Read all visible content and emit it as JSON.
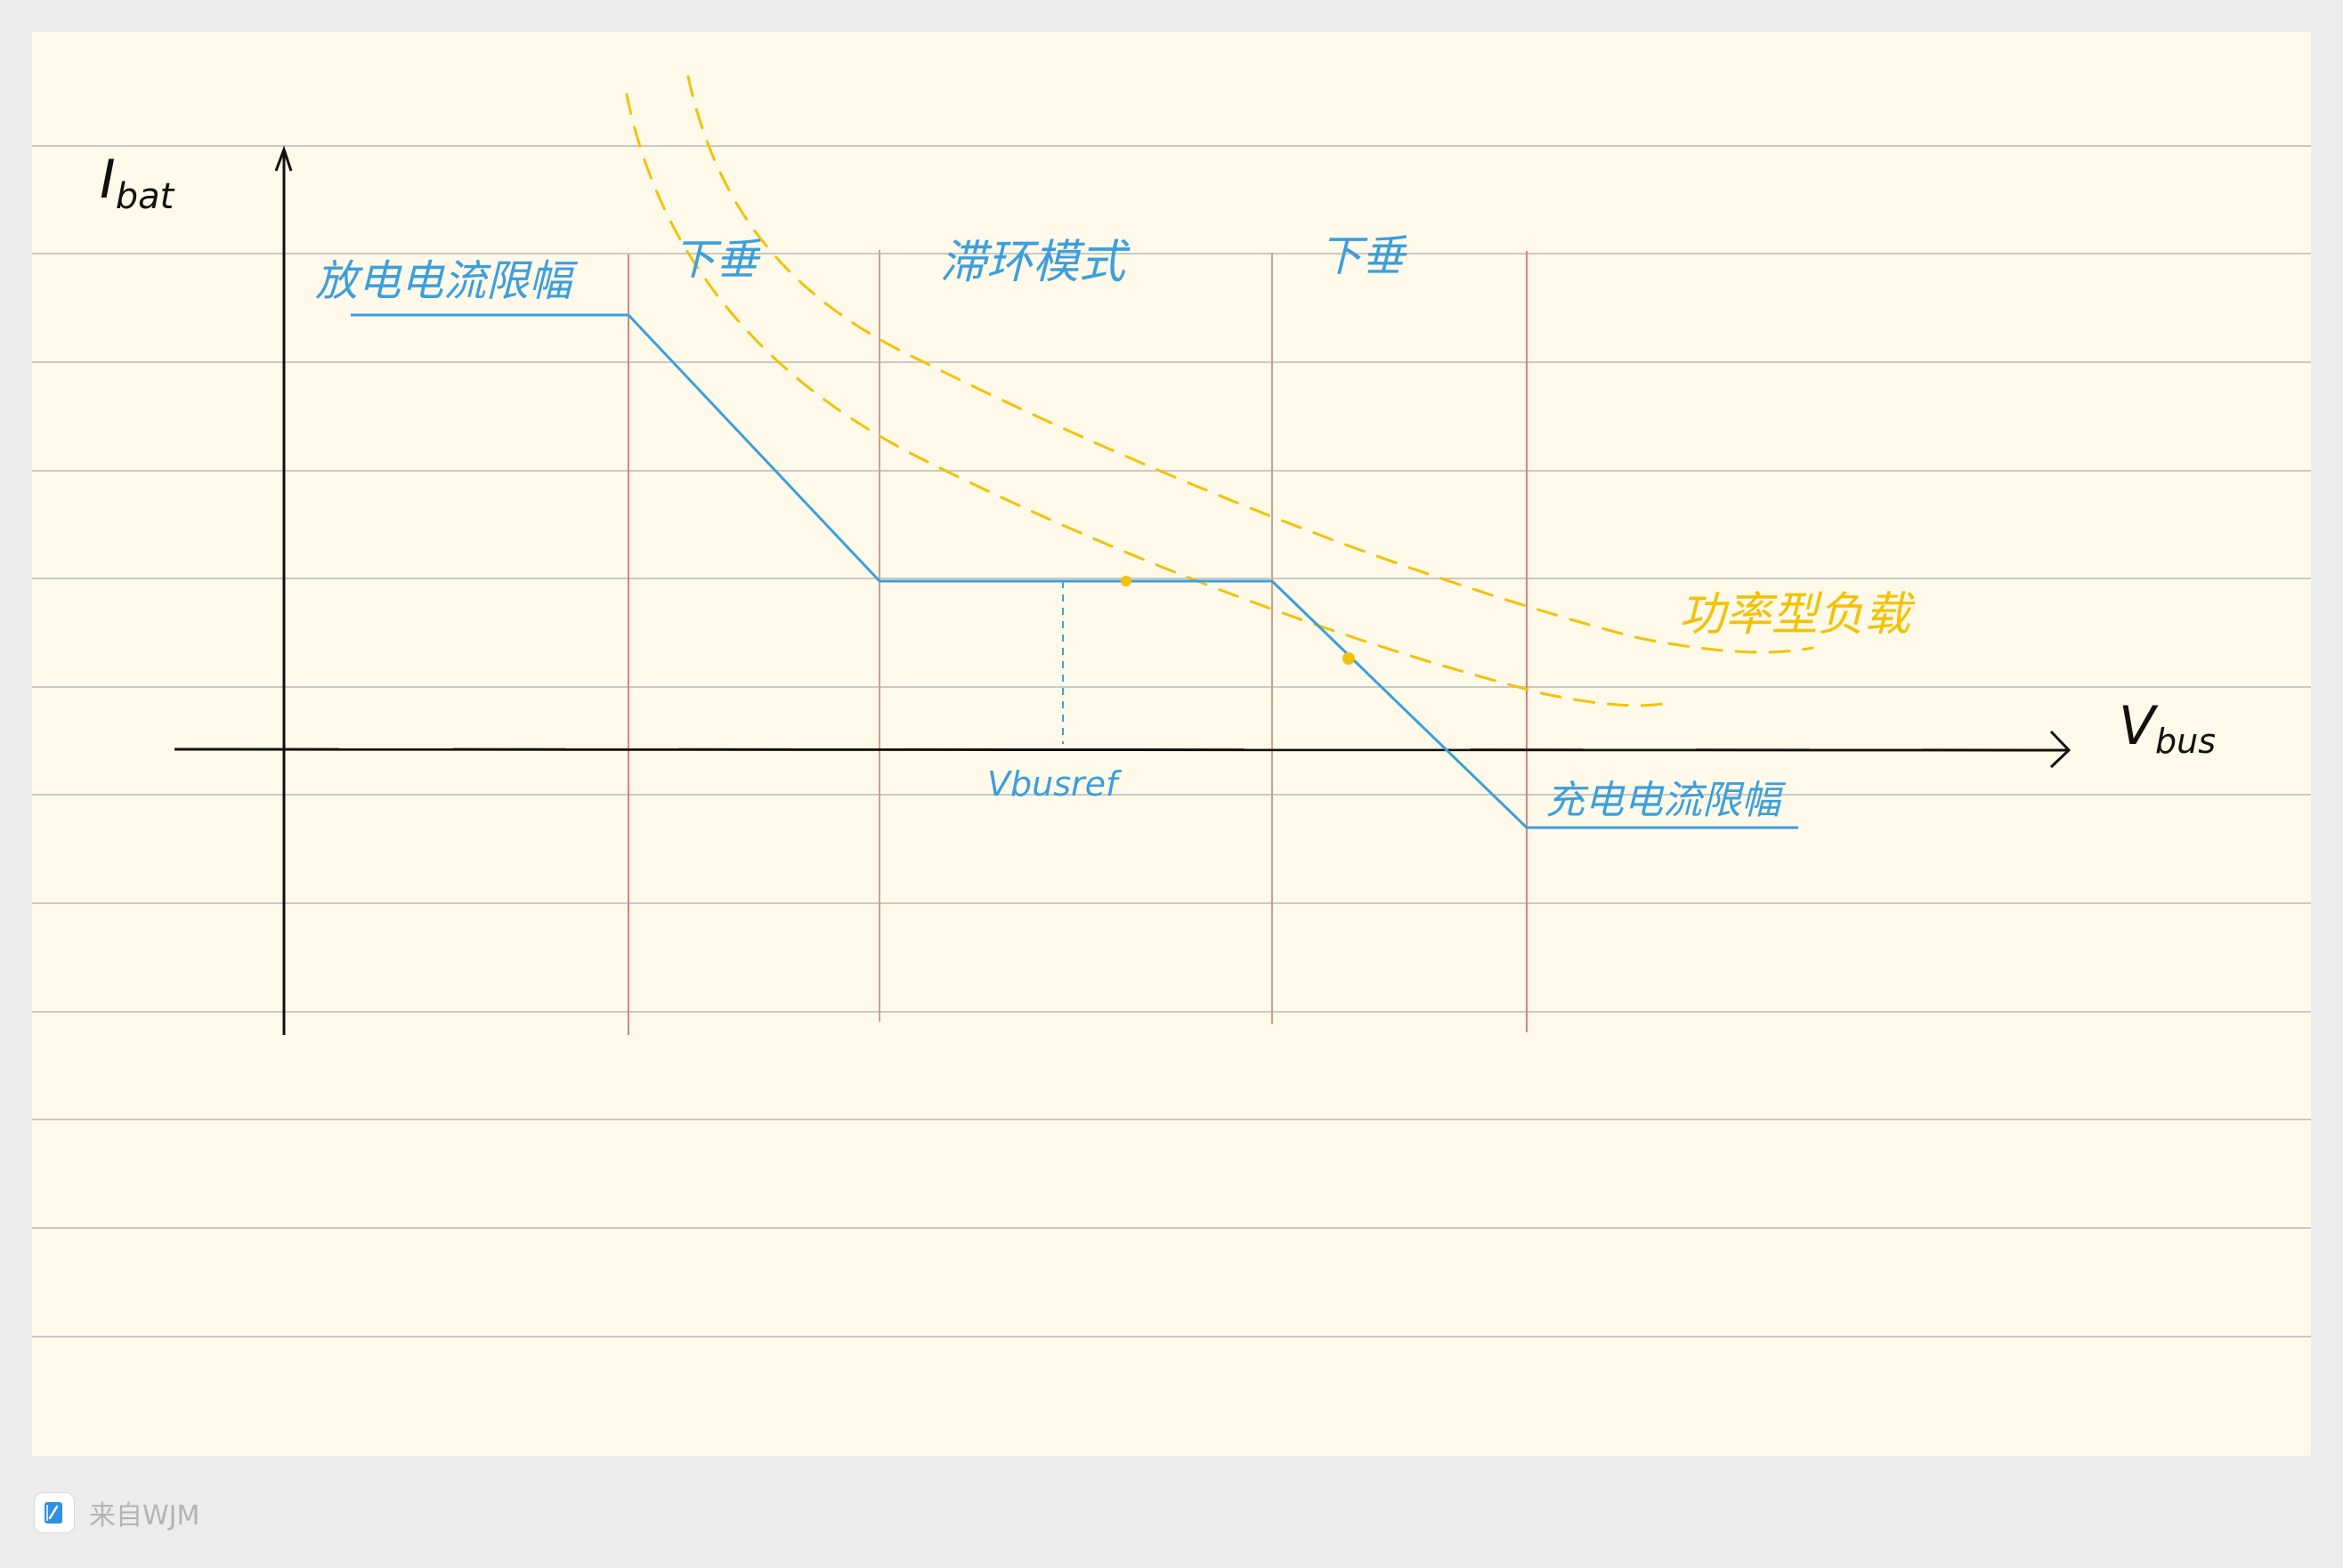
{
  "axes": {
    "y_label_main": "I",
    "y_label_sub": "bat",
    "x_label_main": "V",
    "x_label_sub": "bus"
  },
  "regions": {
    "discharge_limit": "放电电流限幅",
    "droop_left": "下垂",
    "hysteresis": "滞环模式",
    "droop_right": "下垂",
    "charge_limit": "充电电流限幅"
  },
  "markers": {
    "vbusref": "Vbusref"
  },
  "load": {
    "label": "功率型负载"
  },
  "footer": {
    "source": "来自WJM"
  },
  "colors": {
    "paper": "#fef9e8",
    "ruled_line": "#c9c9c9",
    "divider_red": "#d98080",
    "divider_brown": "#c9a090",
    "characteristic_blue": "#3c9fdc",
    "load_yellow": "#f2c20a",
    "axis": "#111111"
  },
  "icons": [
    "notes-app-icon",
    "pen-icon"
  ]
}
